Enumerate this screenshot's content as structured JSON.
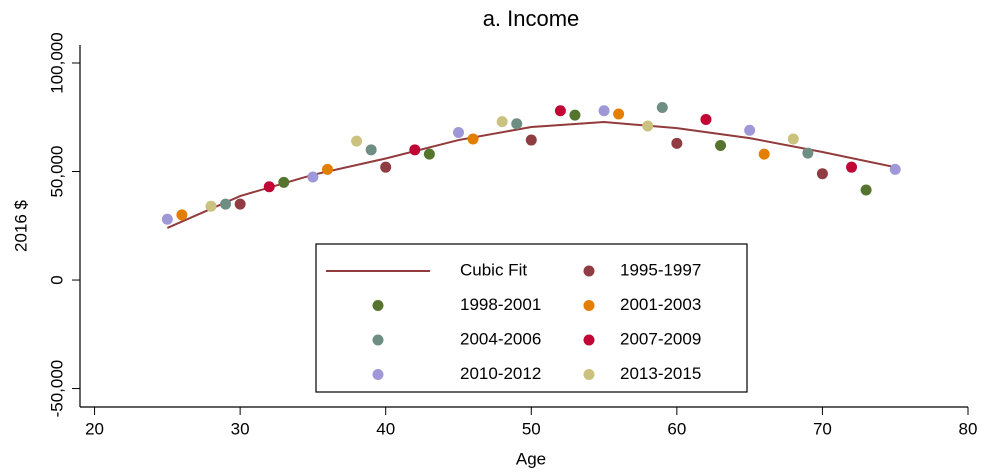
{
  "chart_data": {
    "type": "scatter",
    "title": "a. Income",
    "x_label": "Age",
    "y_label": "2016 $",
    "xlim": [
      19,
      80
    ],
    "ylim": [
      -58500,
      108300
    ],
    "xticks": [
      20,
      30,
      40,
      50,
      60,
      70,
      80
    ],
    "yticks": [
      {
        "value": -50000,
        "label": "-50,000"
      },
      0,
      {
        "value": 50000,
        "label": "50,000"
      },
      {
        "value": 100000,
        "label": "100,000"
      }
    ],
    "grid": false,
    "series": [
      {
        "name": "Cubic Fit",
        "type": "line",
        "color": "#923b3c",
        "x": [
          25,
          30,
          35,
          40,
          45,
          50,
          55,
          60,
          65,
          70,
          75
        ],
        "values": [
          24000,
          38700,
          48500,
          56000,
          64500,
          70500,
          72800,
          70000,
          65400,
          59000,
          52000
        ]
      },
      {
        "name": "1995-1997",
        "type": "scatter",
        "color": "#8f3d42",
        "x": [
          30,
          40,
          50,
          60,
          70
        ],
        "values": [
          35000,
          52000,
          64500,
          63000,
          49000
        ]
      },
      {
        "name": "1998-2001",
        "type": "scatter",
        "color": "#55752f",
        "x": [
          33,
          43,
          53,
          63,
          73
        ],
        "values": [
          45000,
          58000,
          76000,
          62000,
          41500
        ]
      },
      {
        "name": "2001-2003",
        "type": "scatter",
        "color": "#e37e00",
        "x": [
          26,
          36,
          46,
          56,
          66
        ],
        "values": [
          30000,
          51000,
          65000,
          76500,
          58000
        ]
      },
      {
        "name": "2004-2006",
        "type": "scatter",
        "color": "#6e8e84",
        "x": [
          29,
          39,
          49,
          59,
          69
        ],
        "values": [
          35000,
          60000,
          72000,
          79500,
          58500
        ]
      },
      {
        "name": "2007-2009",
        "type": "scatter",
        "color": "#c10534",
        "x": [
          32,
          42,
          52,
          62,
          72
        ],
        "values": [
          43000,
          60000,
          78000,
          74000,
          52000
        ]
      },
      {
        "name": "2010-2012",
        "type": "scatter",
        "color": "#9e98d8",
        "x": [
          25,
          35,
          45,
          55,
          65,
          75
        ],
        "values": [
          28000,
          47500,
          68000,
          78000,
          69000,
          51000
        ]
      },
      {
        "name": "2013-2015",
        "type": "scatter",
        "color": "#cac27e",
        "x": [
          28,
          38,
          48,
          58,
          68
        ],
        "values": [
          34000,
          64000,
          73000,
          71000,
          65000
        ]
      }
    ]
  }
}
